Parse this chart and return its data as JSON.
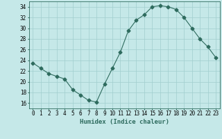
{
  "x": [
    0,
    1,
    2,
    3,
    4,
    5,
    6,
    7,
    8,
    9,
    10,
    11,
    12,
    13,
    14,
    15,
    16,
    17,
    18,
    19,
    20,
    21,
    22,
    23
  ],
  "y": [
    23.5,
    22.5,
    21.5,
    21.0,
    20.5,
    18.5,
    17.5,
    16.5,
    16.2,
    19.5,
    22.5,
    25.5,
    29.5,
    31.5,
    32.5,
    34.0,
    34.2,
    34.0,
    33.5,
    32.0,
    30.0,
    28.0,
    26.5,
    24.5
  ],
  "line_color": "#2e6b5e",
  "marker": "D",
  "marker_size": 2.5,
  "bg_color": "#c5e8e8",
  "grid_color": "#a0cece",
  "xlabel": "Humidex (Indice chaleur)",
  "ylim": [
    15,
    35
  ],
  "yticks": [
    16,
    18,
    20,
    22,
    24,
    26,
    28,
    30,
    32,
    34
  ],
  "xticks": [
    0,
    1,
    2,
    3,
    4,
    5,
    6,
    7,
    8,
    9,
    10,
    11,
    12,
    13,
    14,
    15,
    16,
    17,
    18,
    19,
    20,
    21,
    22,
    23
  ],
  "xlabel_fontsize": 6.5,
  "tick_fontsize": 5.5
}
